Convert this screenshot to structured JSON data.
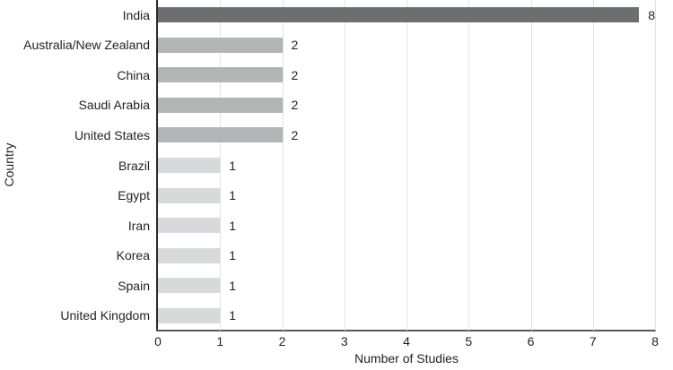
{
  "chart_data": {
    "type": "bar",
    "orientation": "horizontal",
    "title": "",
    "xlabel": "Number of Studies",
    "ylabel": "Country",
    "categories": [
      "India",
      "Australia/New Zealand",
      "China",
      "Saudi Arabia",
      "United States",
      "Brazil",
      "Egypt",
      "Iran",
      "Korea",
      "Spain",
      "United Kingdom"
    ],
    "values": [
      8,
      2,
      2,
      2,
      2,
      1,
      1,
      1,
      1,
      1,
      1
    ],
    "value_labels": [
      "8",
      "2",
      "2",
      "2",
      "2",
      "1",
      "1",
      "1",
      "1",
      "1",
      "1"
    ],
    "bar_colors": [
      "#6d6e71",
      "#b2b4b6",
      "#b2b4b6",
      "#b2b4b6",
      "#b2b4b6",
      "#d8d9db",
      "#d8d9db",
      "#d8d9db",
      "#d8d9db",
      "#d8d9db",
      "#d8d9db"
    ],
    "xlim": [
      0,
      8
    ],
    "xticks": [
      0,
      1,
      2,
      3,
      4,
      5,
      6,
      7,
      8
    ],
    "grid": "vertical",
    "legend": false,
    "colors": {
      "dark_bar": "#6d6e71",
      "medium_bar": "#b2b4b6",
      "light_bar": "#d8d9db",
      "gridline": "#e1e1e3",
      "y_axis_line": "#2b2b2e",
      "x_axis_line": "#56575a",
      "text": "#231f20",
      "background": "#ffffff"
    }
  }
}
